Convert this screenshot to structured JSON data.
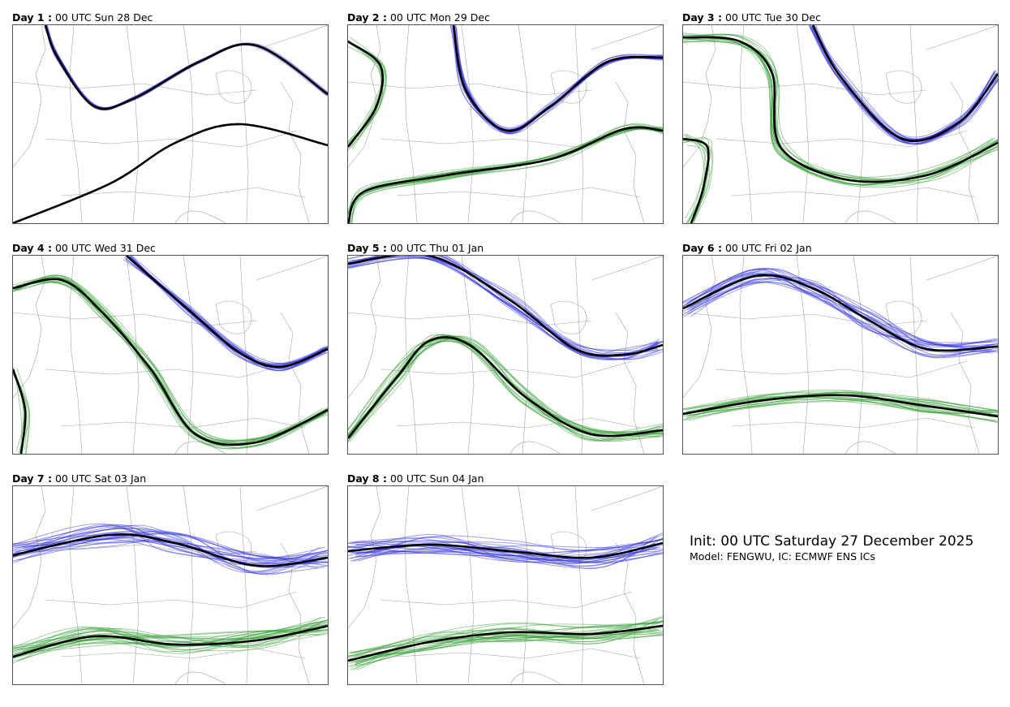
{
  "colors": {
    "trough_contour": "#2b2bdd",
    "ridge_contour": "#2e9a2e",
    "ensemble_mean": "#000000",
    "map_borders": "#9a9a9a"
  },
  "panels": [
    {
      "day_label": "Day 1 :",
      "time_label": "00 UTC Sun 28 Dec"
    },
    {
      "day_label": "Day 2 :",
      "time_label": "00 UTC Mon 29 Dec"
    },
    {
      "day_label": "Day 3 :",
      "time_label": "00 UTC Tue 30 Dec"
    },
    {
      "day_label": "Day 4 :",
      "time_label": "00 UTC Wed 31 Dec"
    },
    {
      "day_label": "Day 5 :",
      "time_label": "00 UTC Thu 01 Jan"
    },
    {
      "day_label": "Day 6 :",
      "time_label": "00 UTC Fri 02 Jan"
    },
    {
      "day_label": "Day 7 :",
      "time_label": "00 UTC Sat 03 Jan"
    },
    {
      "day_label": "Day 8 :",
      "time_label": "00 UTC Sun 04 Jan"
    }
  ],
  "info": {
    "init_label": "Init: 00 UTC Saturday 27 December 2025",
    "model_label": "Model: FENGWU, IC: ECMWF ENS ICs"
  }
}
